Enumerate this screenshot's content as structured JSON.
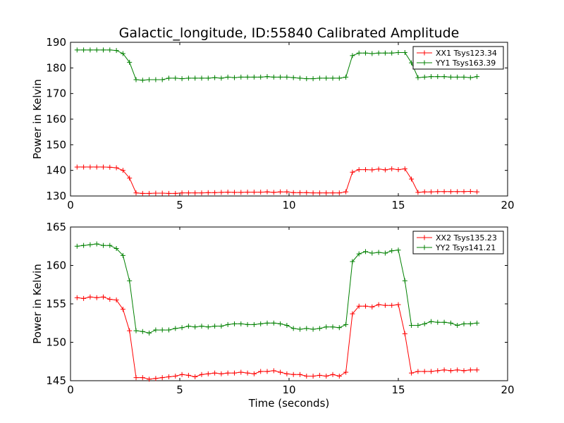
{
  "title": "Galactic_longitude, ID:55840 Calibrated Amplitude",
  "colors": {
    "XX": "#ff0000",
    "YY": "#008000"
  },
  "chart_data": [
    {
      "type": "line",
      "xlabel": "",
      "ylabel": "Power in Kelvin",
      "xlim": [
        0,
        20
      ],
      "ylim": [
        130,
        190
      ],
      "xticks": [
        0,
        5,
        10,
        15,
        20
      ],
      "yticks": [
        130,
        140,
        150,
        160,
        170,
        180,
        190
      ],
      "grid": false,
      "legend_position": "top-right",
      "x": [
        0.3,
        0.6,
        0.9,
        1.2,
        1.5,
        1.8,
        2.1,
        2.4,
        2.7,
        3.0,
        3.3,
        3.6,
        3.9,
        4.2,
        4.5,
        4.8,
        5.1,
        5.4,
        5.7,
        6.0,
        6.3,
        6.6,
        6.9,
        7.2,
        7.5,
        7.8,
        8.1,
        8.4,
        8.7,
        9.0,
        9.3,
        9.6,
        9.9,
        10.2,
        10.5,
        10.8,
        11.1,
        11.4,
        11.7,
        12.0,
        12.3,
        12.6,
        12.9,
        13.2,
        13.5,
        13.8,
        14.1,
        14.4,
        14.7,
        15.0,
        15.3,
        15.6,
        15.9,
        16.2,
        16.5,
        16.8,
        17.1,
        17.4,
        17.7,
        18.0,
        18.3,
        18.6
      ],
      "series": [
        {
          "name": "XX1 Tsys123.34",
          "color": "#ff0000",
          "values": [
            141.3,
            141.3,
            141.3,
            141.3,
            141.3,
            141.2,
            141.0,
            140.0,
            137.0,
            131.2,
            131.0,
            131.0,
            131.1,
            131.1,
            131.0,
            131.0,
            131.2,
            131.2,
            131.2,
            131.2,
            131.3,
            131.3,
            131.4,
            131.5,
            131.4,
            131.4,
            131.5,
            131.5,
            131.5,
            131.6,
            131.4,
            131.6,
            131.6,
            131.3,
            131.3,
            131.3,
            131.2,
            131.2,
            131.2,
            131.2,
            131.2,
            131.6,
            139.3,
            140.3,
            140.3,
            140.2,
            140.5,
            140.2,
            140.6,
            140.3,
            140.6,
            136.6,
            131.4,
            131.6,
            131.6,
            131.7,
            131.7,
            131.7,
            131.7,
            131.7,
            131.8,
            131.6
          ]
        },
        {
          "name": "YY1 Tsys163.39",
          "color": "#008000",
          "values": [
            187.0,
            187.0,
            187.0,
            187.0,
            187.0,
            187.0,
            186.8,
            185.6,
            182.2,
            175.4,
            175.2,
            175.4,
            175.4,
            175.4,
            176.0,
            176.0,
            175.8,
            176.0,
            176.0,
            176.0,
            176.0,
            176.2,
            176.0,
            176.4,
            176.2,
            176.4,
            176.4,
            176.4,
            176.4,
            176.6,
            176.4,
            176.4,
            176.4,
            176.2,
            176.0,
            175.8,
            175.8,
            176.0,
            176.0,
            176.0,
            176.0,
            176.4,
            184.8,
            185.8,
            185.8,
            185.6,
            185.8,
            185.8,
            185.8,
            186.0,
            186.0,
            182.0,
            176.2,
            176.4,
            176.6,
            176.6,
            176.6,
            176.4,
            176.4,
            176.4,
            176.2,
            176.6
          ]
        }
      ]
    },
    {
      "type": "line",
      "xlabel": "Time (seconds)",
      "ylabel": "Power in Kelvin",
      "xlim": [
        0,
        20
      ],
      "ylim": [
        145,
        165
      ],
      "xticks": [
        0,
        5,
        10,
        15,
        20
      ],
      "yticks": [
        145,
        150,
        155,
        160,
        165
      ],
      "grid": false,
      "legend_position": "top-right",
      "x": [
        0.3,
        0.6,
        0.9,
        1.2,
        1.5,
        1.8,
        2.1,
        2.4,
        2.7,
        3.0,
        3.3,
        3.6,
        3.9,
        4.2,
        4.5,
        4.8,
        5.1,
        5.4,
        5.7,
        6.0,
        6.3,
        6.6,
        6.9,
        7.2,
        7.5,
        7.8,
        8.1,
        8.4,
        8.7,
        9.0,
        9.3,
        9.6,
        9.9,
        10.2,
        10.5,
        10.8,
        11.1,
        11.4,
        11.7,
        12.0,
        12.3,
        12.6,
        12.9,
        13.2,
        13.5,
        13.8,
        14.1,
        14.4,
        14.7,
        15.0,
        15.3,
        15.6,
        15.9,
        16.2,
        16.5,
        16.8,
        17.1,
        17.4,
        17.7,
        18.0,
        18.3,
        18.6
      ],
      "series": [
        {
          "name": "XX2 Tsys135.23",
          "color": "#ff0000",
          "values": [
            155.8,
            155.7,
            155.9,
            155.8,
            155.9,
            155.6,
            155.5,
            154.3,
            151.5,
            145.4,
            145.4,
            145.2,
            145.3,
            145.4,
            145.5,
            145.6,
            145.8,
            145.7,
            145.5,
            145.8,
            145.9,
            146.0,
            145.9,
            146.0,
            146.0,
            146.1,
            146.0,
            145.9,
            146.2,
            146.2,
            146.3,
            146.1,
            145.9,
            145.8,
            145.8,
            145.6,
            145.6,
            145.7,
            145.6,
            145.8,
            145.6,
            146.1,
            153.7,
            154.7,
            154.7,
            154.6,
            154.9,
            154.8,
            154.8,
            154.9,
            151.1,
            146.0,
            146.2,
            146.2,
            146.2,
            146.3,
            146.4,
            146.3,
            146.4,
            146.3,
            146.4,
            146.4
          ]
        },
        {
          "name": "YY2 Tsys141.21",
          "color": "#008000",
          "values": [
            162.5,
            162.6,
            162.7,
            162.8,
            162.6,
            162.6,
            162.2,
            161.3,
            158.0,
            151.5,
            151.4,
            151.2,
            151.6,
            151.6,
            151.6,
            151.8,
            151.9,
            152.1,
            152.0,
            152.1,
            152.0,
            152.1,
            152.1,
            152.3,
            152.4,
            152.4,
            152.3,
            152.3,
            152.4,
            152.5,
            152.5,
            152.4,
            152.2,
            151.8,
            151.7,
            151.8,
            151.7,
            151.8,
            152.0,
            152.0,
            151.9,
            152.3,
            160.5,
            161.5,
            161.8,
            161.6,
            161.7,
            161.6,
            161.9,
            162.0,
            158.0,
            152.2,
            152.2,
            152.4,
            152.7,
            152.6,
            152.6,
            152.5,
            152.2,
            152.4,
            152.4,
            152.5
          ]
        }
      ]
    }
  ]
}
